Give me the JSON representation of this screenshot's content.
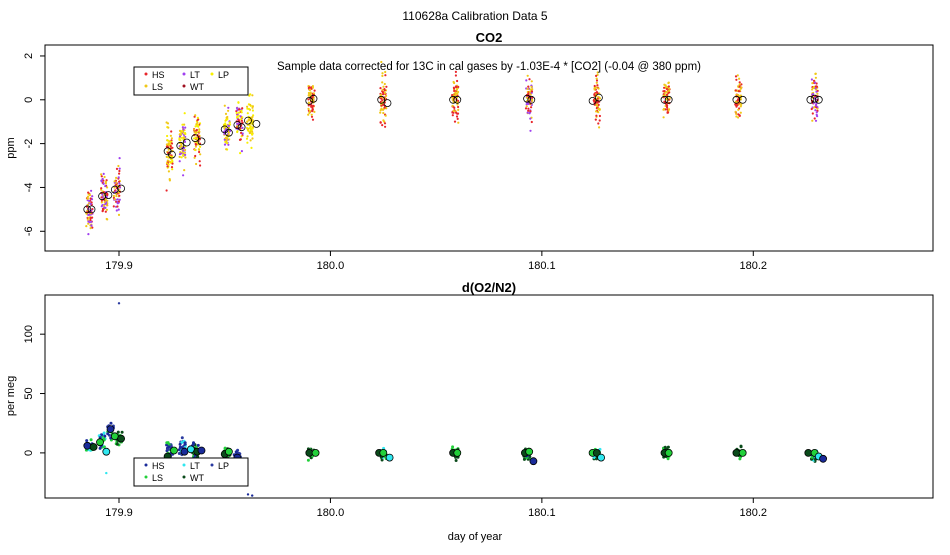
{
  "page_title": "110628a   Calibration Data 5",
  "colors": {
    "HS": "#e8262b",
    "LS": "#f0c818",
    "LT": "#a040f0",
    "WT": "#a01020",
    "LP": "#f8f000",
    "open_circle": "#000000",
    "o2_HS": "#1a2b9a",
    "o2_LS": "#22d03a",
    "o2_LT": "#30e8f0",
    "o2_WT": "#0a4a1a",
    "o2_LP": "#2a3aa0"
  },
  "chart_data": [
    {
      "type": "scatter",
      "title": "CO2",
      "annotation": "Sample data corrected for 13C in cal gases by -1.03E-4 * [CO2] (-0.04 @ 380 ppm)",
      "xlabel": "",
      "ylabel": "ppm",
      "xlim": [
        179.865,
        180.285
      ],
      "ylim": [
        -6.9,
        2.5
      ],
      "x_ticks": [
        179.9,
        180.0,
        180.1,
        180.2
      ],
      "x_tick_labels": [
        "179.9",
        "180.0",
        "180.1",
        "180.2"
      ],
      "y_ticks": [
        -6,
        -4,
        -2,
        0,
        2
      ],
      "y_tick_labels": [
        "-6",
        "-4",
        "-2",
        "0",
        "2"
      ],
      "grid": false,
      "legend": {
        "placement": "top-left",
        "entries": [
          {
            "key": "HS",
            "label": "HS"
          },
          {
            "key": "LT",
            "label": "LT"
          },
          {
            "key": "LP",
            "label": "LP"
          },
          {
            "key": "LS",
            "label": "LS"
          },
          {
            "key": "WT",
            "label": "WT"
          }
        ]
      },
      "clusters": [
        {
          "x": 179.886,
          "y": -5.0,
          "spread": 1.5,
          "series": [
            "HS",
            "LT",
            "LS"
          ]
        },
        {
          "x": 179.893,
          "y": -4.4,
          "spread": 1.5,
          "series": [
            "HS",
            "LT",
            "LS"
          ]
        },
        {
          "x": 179.899,
          "y": -4.1,
          "spread": 1.6,
          "series": [
            "HS",
            "LT",
            "LS"
          ]
        },
        {
          "x": 179.924,
          "y": -2.4,
          "spread": 1.6,
          "series": [
            "LS",
            "LP",
            "HS"
          ]
        },
        {
          "x": 179.93,
          "y": -2.0,
          "spread": 1.6,
          "series": [
            "LT",
            "LS",
            "LP"
          ]
        },
        {
          "x": 179.937,
          "y": -1.8,
          "spread": 1.5,
          "series": [
            "HS",
            "LS",
            "LP"
          ]
        },
        {
          "x": 179.951,
          "y": -1.4,
          "spread": 1.5,
          "series": [
            "LS",
            "LP",
            "LT"
          ]
        },
        {
          "x": 179.957,
          "y": -1.1,
          "spread": 1.5,
          "series": [
            "HS",
            "LT",
            "LP"
          ]
        },
        {
          "x": 179.962,
          "y": -1.0,
          "spread": 1.6,
          "series": [
            "LP",
            "LS"
          ]
        },
        {
          "x": 179.991,
          "y": 0.0,
          "spread": 1.2,
          "series": [
            "LS",
            "HS"
          ]
        },
        {
          "x": 180.025,
          "y": -0.05,
          "spread": 1.8,
          "series": [
            "HS",
            "LS"
          ]
        },
        {
          "x": 180.059,
          "y": 0.0,
          "spread": 1.6,
          "series": [
            "HS",
            "LS"
          ]
        },
        {
          "x": 180.094,
          "y": 0.1,
          "spread": 1.7,
          "series": [
            "LT",
            "HS",
            "LS"
          ]
        },
        {
          "x": 180.126,
          "y": 0.05,
          "spread": 1.6,
          "series": [
            "HS",
            "LS"
          ]
        },
        {
          "x": 180.159,
          "y": 0.0,
          "spread": 1.4,
          "series": [
            "HS",
            "LS"
          ]
        },
        {
          "x": 180.193,
          "y": 0.0,
          "spread": 1.6,
          "series": [
            "HS",
            "LS"
          ]
        },
        {
          "x": 180.229,
          "y": 0.05,
          "spread": 1.6,
          "series": [
            "HS",
            "LT",
            "LS"
          ]
        }
      ],
      "means": [
        {
          "x": 179.885,
          "y": -5.0
        },
        {
          "x": 179.887,
          "y": -5.0
        },
        {
          "x": 179.892,
          "y": -4.4
        },
        {
          "x": 179.895,
          "y": -4.35
        },
        {
          "x": 179.898,
          "y": -4.1
        },
        {
          "x": 179.901,
          "y": -4.05
        },
        {
          "x": 179.923,
          "y": -2.35
        },
        {
          "x": 179.925,
          "y": -2.5
        },
        {
          "x": 179.929,
          "y": -2.1
        },
        {
          "x": 179.932,
          "y": -1.95
        },
        {
          "x": 179.936,
          "y": -1.75
        },
        {
          "x": 179.939,
          "y": -1.9
        },
        {
          "x": 179.95,
          "y": -1.35
        },
        {
          "x": 179.952,
          "y": -1.5
        },
        {
          "x": 179.956,
          "y": -1.15
        },
        {
          "x": 179.958,
          "y": -1.25
        },
        {
          "x": 179.961,
          "y": -0.95
        },
        {
          "x": 179.965,
          "y": -1.1
        },
        {
          "x": 179.99,
          "y": -0.05
        },
        {
          "x": 179.992,
          "y": 0.05
        },
        {
          "x": 180.024,
          "y": 0.0
        },
        {
          "x": 180.027,
          "y": -0.15
        },
        {
          "x": 180.058,
          "y": 0.0
        },
        {
          "x": 180.06,
          "y": 0.0
        },
        {
          "x": 180.093,
          "y": 0.05
        },
        {
          "x": 180.095,
          "y": 0.0
        },
        {
          "x": 180.124,
          "y": -0.05
        },
        {
          "x": 180.127,
          "y": 0.1
        },
        {
          "x": 180.158,
          "y": 0.0
        },
        {
          "x": 180.16,
          "y": 0.0
        },
        {
          "x": 180.192,
          "y": 0.0
        },
        {
          "x": 180.195,
          "y": 0.0
        },
        {
          "x": 180.227,
          "y": 0.0
        },
        {
          "x": 180.229,
          "y": 0.05
        },
        {
          "x": 180.231,
          "y": 0.0
        }
      ]
    },
    {
      "type": "scatter",
      "title": "d(O2/N2)",
      "xlabel": "day of year",
      "ylabel": "per meg",
      "xlim": [
        179.865,
        180.285
      ],
      "ylim": [
        -38,
        133
      ],
      "x_ticks": [
        179.9,
        180.0,
        180.1,
        180.2
      ],
      "x_tick_labels": [
        "179.9",
        "180.0",
        "180.1",
        "180.2"
      ],
      "y_ticks": [
        0,
        50,
        100
      ],
      "y_tick_labels": [
        "0",
        "50",
        "100"
      ],
      "grid": false,
      "legend": {
        "placement": "bottom-left",
        "entries": [
          {
            "key": "o2_HS",
            "label": "HS"
          },
          {
            "key": "o2_LT",
            "label": "LT"
          },
          {
            "key": "o2_LP",
            "label": "LP"
          },
          {
            "key": "o2_LS",
            "label": "LS"
          },
          {
            "key": "o2_WT",
            "label": "WT"
          }
        ]
      },
      "outliers": [
        {
          "x": 179.9,
          "y": 126,
          "series": "o2_LP"
        },
        {
          "x": 179.894,
          "y": -17,
          "series": "o2_LT"
        },
        {
          "x": 179.961,
          "y": -35,
          "series": "o2_HS"
        },
        {
          "x": 179.963,
          "y": -36,
          "series": "o2_HS"
        }
      ],
      "clusters": [
        {
          "x": 179.886,
          "y": 6,
          "spread": 10,
          "series": [
            "o2_HS",
            "o2_LS",
            "o2_LT"
          ]
        },
        {
          "x": 179.892,
          "y": 10,
          "spread": 10,
          "series": [
            "o2_LS",
            "o2_LT",
            "o2_HS"
          ]
        },
        {
          "x": 179.896,
          "y": 18,
          "spread": 12,
          "series": [
            "o2_HS",
            "o2_LP",
            "o2_LS"
          ]
        },
        {
          "x": 179.9,
          "y": 12,
          "spread": 8,
          "series": [
            "o2_LS",
            "o2_WT"
          ]
        },
        {
          "x": 179.924,
          "y": 2,
          "spread": 14,
          "series": [
            "o2_HS",
            "o2_LS",
            "o2_LP"
          ]
        },
        {
          "x": 179.93,
          "y": 3,
          "spread": 14,
          "series": [
            "o2_HS",
            "o2_LT",
            "o2_LP"
          ]
        },
        {
          "x": 179.936,
          "y": 1,
          "spread": 12,
          "series": [
            "o2_HS",
            "o2_LS",
            "o2_WT"
          ]
        },
        {
          "x": 179.951,
          "y": 0,
          "spread": 8,
          "series": [
            "o2_LS",
            "o2_WT"
          ]
        },
        {
          "x": 179.956,
          "y": -3,
          "spread": 8,
          "series": [
            "o2_HS",
            "o2_LP"
          ]
        },
        {
          "x": 179.991,
          "y": 0,
          "spread": 6,
          "series": [
            "o2_LS",
            "o2_WT"
          ]
        },
        {
          "x": 180.025,
          "y": -1,
          "spread": 8,
          "series": [
            "o2_LS",
            "o2_WT",
            "o2_LT"
          ]
        },
        {
          "x": 180.059,
          "y": 0,
          "spread": 7,
          "series": [
            "o2_LS",
            "o2_WT"
          ]
        },
        {
          "x": 180.093,
          "y": -2,
          "spread": 9,
          "series": [
            "o2_LS",
            "o2_WT",
            "o2_HS"
          ]
        },
        {
          "x": 180.126,
          "y": -2,
          "spread": 8,
          "series": [
            "o2_LS",
            "o2_WT",
            "o2_LT"
          ]
        },
        {
          "x": 180.159,
          "y": 1,
          "spread": 9,
          "series": [
            "o2_LS",
            "o2_WT"
          ]
        },
        {
          "x": 180.193,
          "y": 0,
          "spread": 7,
          "series": [
            "o2_LS",
            "o2_WT"
          ]
        },
        {
          "x": 180.229,
          "y": -2,
          "spread": 7,
          "series": [
            "o2_WT",
            "o2_LS",
            "o2_LT",
            "o2_HS"
          ]
        }
      ],
      "means": [
        {
          "x": 179.885,
          "y": 6,
          "series": "o2_HS"
        },
        {
          "x": 179.888,
          "y": 5,
          "series": "o2_WT"
        },
        {
          "x": 179.891,
          "y": 9,
          "series": "o2_LS"
        },
        {
          "x": 179.894,
          "y": 1,
          "series": "o2_LT"
        },
        {
          "x": 179.896,
          "y": 20,
          "series": "o2_HS"
        },
        {
          "x": 179.898,
          "y": 14,
          "series": "o2_LS"
        },
        {
          "x": 179.901,
          "y": 12,
          "series": "o2_WT"
        },
        {
          "x": 179.923,
          "y": -3,
          "series": "o2_WT"
        },
        {
          "x": 179.926,
          "y": 2,
          "series": "o2_LS"
        },
        {
          "x": 179.931,
          "y": 1,
          "series": "o2_HS"
        },
        {
          "x": 179.934,
          "y": 3,
          "series": "o2_LT"
        },
        {
          "x": 179.937,
          "y": 1,
          "series": "o2_WT"
        },
        {
          "x": 179.939,
          "y": 2,
          "series": "o2_HS"
        },
        {
          "x": 179.95,
          "y": -1,
          "series": "o2_WT"
        },
        {
          "x": 179.952,
          "y": 1,
          "series": "o2_LS"
        },
        {
          "x": 179.956,
          "y": -4,
          "series": "o2_HS"
        },
        {
          "x": 179.99,
          "y": 0,
          "series": "o2_WT"
        },
        {
          "x": 179.993,
          "y": 0,
          "series": "o2_LS"
        },
        {
          "x": 180.023,
          "y": 0,
          "series": "o2_WT"
        },
        {
          "x": 180.025,
          "y": 0,
          "series": "o2_LS"
        },
        {
          "x": 180.028,
          "y": -4,
          "series": "o2_LT"
        },
        {
          "x": 180.058,
          "y": 0,
          "series": "o2_WT"
        },
        {
          "x": 180.06,
          "y": 0,
          "series": "o2_LS"
        },
        {
          "x": 180.092,
          "y": 0,
          "series": "o2_WT"
        },
        {
          "x": 180.094,
          "y": 1,
          "series": "o2_LS"
        },
        {
          "x": 180.096,
          "y": -7,
          "series": "o2_HS"
        },
        {
          "x": 180.124,
          "y": 0,
          "series": "o2_LS"
        },
        {
          "x": 180.126,
          "y": 0,
          "series": "o2_WT"
        },
        {
          "x": 180.128,
          "y": -4,
          "series": "o2_LT"
        },
        {
          "x": 180.158,
          "y": 0,
          "series": "o2_WT"
        },
        {
          "x": 180.16,
          "y": 0,
          "series": "o2_LS"
        },
        {
          "x": 180.192,
          "y": 0,
          "series": "o2_WT"
        },
        {
          "x": 180.195,
          "y": 0,
          "series": "o2_LS"
        },
        {
          "x": 180.226,
          "y": 0,
          "series": "o2_WT"
        },
        {
          "x": 180.229,
          "y": 0,
          "series": "o2_LS"
        },
        {
          "x": 180.231,
          "y": -3,
          "series": "o2_LT"
        },
        {
          "x": 180.233,
          "y": -5,
          "series": "o2_HS"
        }
      ]
    }
  ]
}
